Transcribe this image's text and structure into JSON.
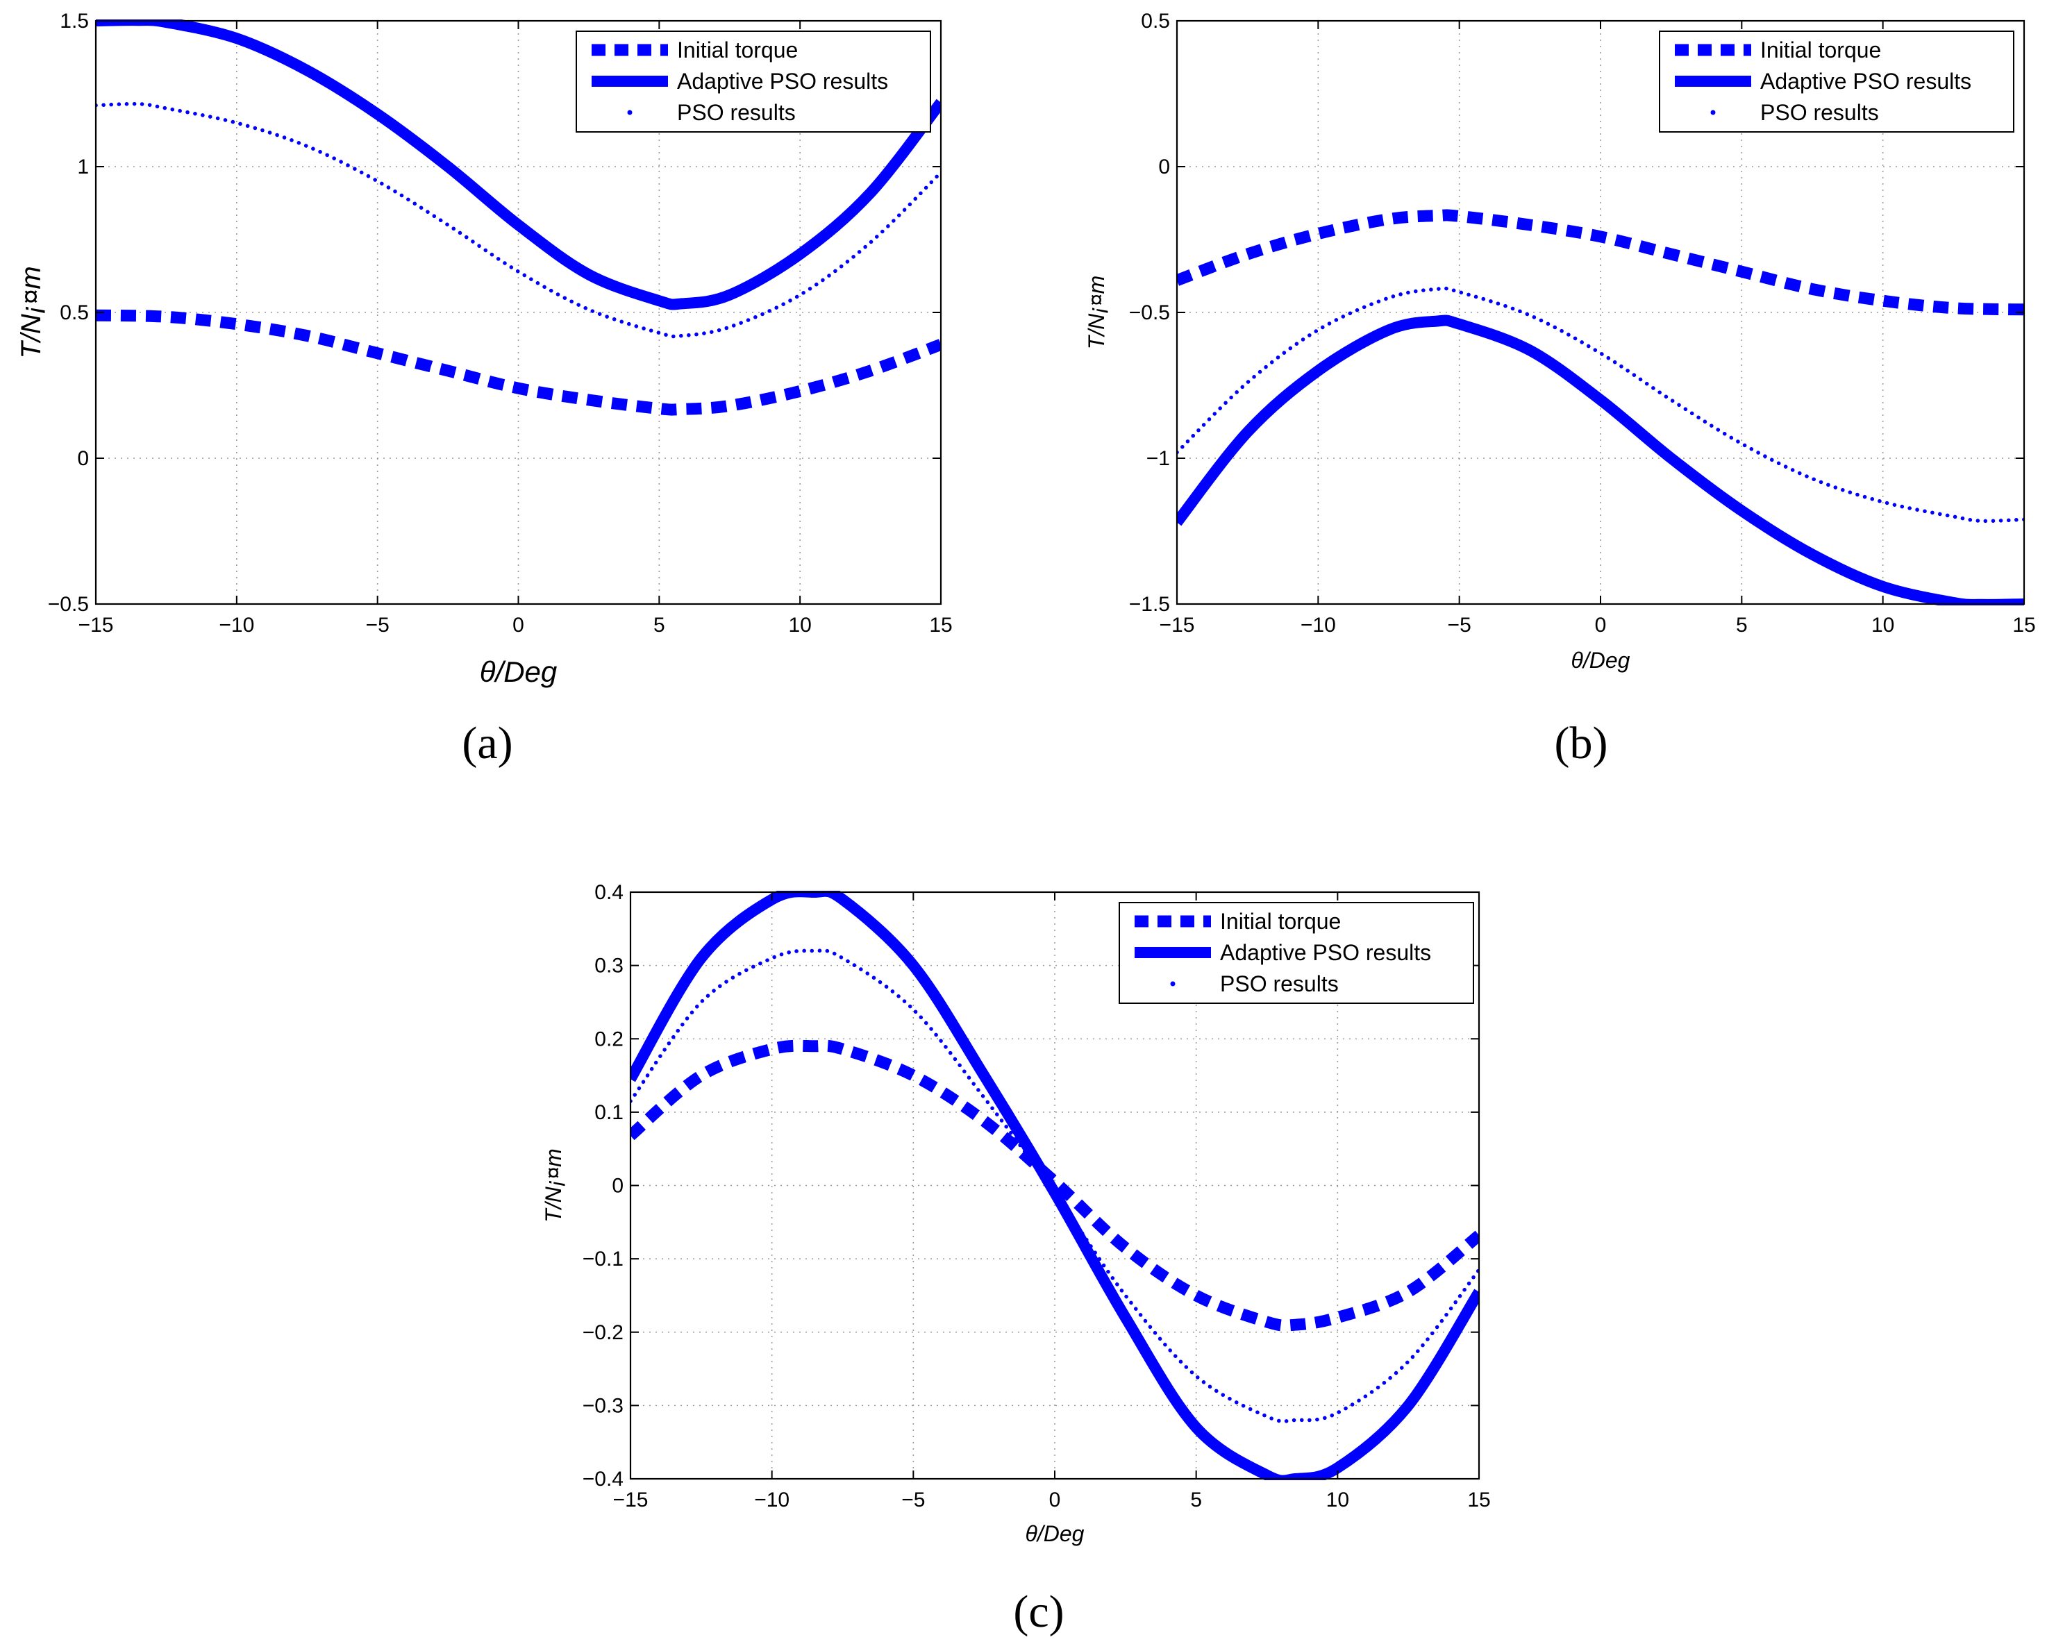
{
  "chart_data": [
    {
      "panel": "(a)",
      "type": "line",
      "xlabel": "θ/Deg",
      "ylabel": "T/N¡¤m",
      "xlim": [
        -15,
        15
      ],
      "ylim": [
        -0.5,
        1.5
      ],
      "xticks": [
        -15,
        -10,
        -5,
        0,
        5,
        10,
        15
      ],
      "xtick_labels": [
        "−15",
        "−10",
        "−5",
        "0",
        "5",
        "10",
        "15"
      ],
      "yticks": [
        -0.5,
        0,
        0.5,
        1,
        1.5
      ],
      "ytick_labels": [
        "−0.5",
        "0",
        "0.5",
        "1",
        "1.5"
      ],
      "grid": true,
      "legend_position": "top-right",
      "series": [
        {
          "name": "Initial torque",
          "style": "thick-dashed",
          "x": [
            -15,
            -12.5,
            -10,
            -7.5,
            -5,
            -2.5,
            0,
            2.5,
            5,
            5.8,
            7.5,
            10,
            12.5,
            15
          ],
          "values": [
            0.49,
            0.485,
            0.46,
            0.42,
            0.36,
            0.3,
            0.24,
            0.2,
            0.17,
            0.168,
            0.18,
            0.23,
            0.3,
            0.39
          ]
        },
        {
          "name": "Adaptive PSO results",
          "style": "thick-solid",
          "x": [
            -15,
            -13.5,
            -12.5,
            -10,
            -7.5,
            -5,
            -2.5,
            0,
            2.5,
            5,
            5.8,
            7.5,
            10,
            12.5,
            15
          ],
          "values": [
            1.5,
            1.502,
            1.495,
            1.44,
            1.33,
            1.18,
            1.0,
            0.8,
            0.63,
            0.54,
            0.53,
            0.56,
            0.7,
            0.91,
            1.22
          ]
        },
        {
          "name": "PSO results",
          "style": "dotted",
          "x": [
            -15,
            -13.5,
            -12.5,
            -10,
            -7.5,
            -5,
            -2.5,
            0,
            2.5,
            5,
            5.8,
            7.5,
            10,
            12.5,
            15
          ],
          "values": [
            1.21,
            1.215,
            1.2,
            1.15,
            1.07,
            0.95,
            0.8,
            0.64,
            0.51,
            0.43,
            0.42,
            0.45,
            0.56,
            0.74,
            0.98
          ]
        }
      ]
    },
    {
      "panel": "(b)",
      "type": "line",
      "xlabel": "θ/Deg",
      "ylabel": "T/N¡¤m",
      "xlim": [
        -15,
        15
      ],
      "ylim": [
        -1.5,
        0.5
      ],
      "xticks": [
        -15,
        -10,
        -5,
        0,
        5,
        10,
        15
      ],
      "xtick_labels": [
        "−15",
        "−10",
        "−5",
        "0",
        "5",
        "10",
        "15"
      ],
      "yticks": [
        -1.5,
        -1,
        -0.5,
        0,
        0.5
      ],
      "ytick_labels": [
        "−1.5",
        "−1",
        "−0.5",
        "0",
        "0.5"
      ],
      "grid": true,
      "legend_position": "top-right",
      "series": [
        {
          "name": "Initial torque",
          "style": "thick-dashed",
          "x": [
            -15,
            -12.5,
            -10,
            -7.5,
            -5.8,
            -5,
            -2.5,
            0,
            2.5,
            5,
            7.5,
            10,
            12.5,
            15
          ],
          "values": [
            -0.39,
            -0.3,
            -0.23,
            -0.18,
            -0.168,
            -0.17,
            -0.2,
            -0.24,
            -0.3,
            -0.36,
            -0.42,
            -0.46,
            -0.485,
            -0.49
          ]
        },
        {
          "name": "Adaptive PSO results",
          "style": "thick-solid",
          "x": [
            -15,
            -12.5,
            -10,
            -7.5,
            -5.8,
            -5,
            -2.5,
            0,
            2.5,
            5,
            7.5,
            10,
            12.5,
            13.5,
            15
          ],
          "values": [
            -1.22,
            -0.91,
            -0.7,
            -0.56,
            -0.53,
            -0.54,
            -0.63,
            -0.8,
            -1.0,
            -1.18,
            -1.33,
            -1.44,
            -1.495,
            -1.502,
            -1.5
          ]
        },
        {
          "name": "PSO results",
          "style": "dotted",
          "x": [
            -15,
            -12.5,
            -10,
            -7.5,
            -5.8,
            -5,
            -2.5,
            0,
            2.5,
            5,
            7.5,
            10,
            12.5,
            13.5,
            15
          ],
          "values": [
            -0.98,
            -0.74,
            -0.56,
            -0.45,
            -0.42,
            -0.43,
            -0.51,
            -0.64,
            -0.8,
            -0.95,
            -1.07,
            -1.15,
            -1.2,
            -1.215,
            -1.21
          ]
        }
      ]
    },
    {
      "panel": "(c)",
      "type": "line",
      "xlabel": "θ/Deg",
      "ylabel": "T/N¡¤m",
      "xlim": [
        -15,
        15
      ],
      "ylim": [
        -0.4,
        0.4
      ],
      "xticks": [
        -15,
        -10,
        -5,
        0,
        5,
        10,
        15
      ],
      "xtick_labels": [
        "−15",
        "−10",
        "−5",
        "0",
        "5",
        "10",
        "15"
      ],
      "yticks": [
        -0.4,
        -0.3,
        -0.2,
        -0.1,
        0,
        0.1,
        0.2,
        0.3,
        0.4
      ],
      "ytick_labels": [
        "−0.4",
        "−0.3",
        "−0.2",
        "−0.1",
        "0",
        "0.1",
        "0.2",
        "0.3",
        "0.4"
      ],
      "grid": true,
      "legend_position": "top-right",
      "series": [
        {
          "name": "Initial torque",
          "style": "thick-dashed",
          "x": [
            -15,
            -12.5,
            -10,
            -8.5,
            -7.5,
            -5,
            -2.5,
            0,
            2.5,
            5,
            7.5,
            8.5,
            10,
            12.5,
            15
          ],
          "values": [
            0.068,
            0.15,
            0.186,
            0.19,
            0.186,
            0.15,
            0.088,
            0.005,
            -0.085,
            -0.15,
            -0.186,
            -0.19,
            -0.18,
            -0.145,
            -0.068
          ]
        },
        {
          "name": "Adaptive PSO results",
          "style": "thick-solid",
          "x": [
            -15,
            -12.5,
            -10,
            -8.5,
            -7.5,
            -5,
            -2.5,
            0,
            2.5,
            5,
            7.5,
            8.5,
            10,
            12.5,
            15
          ],
          "values": [
            0.145,
            0.31,
            0.39,
            0.4,
            0.39,
            0.3,
            0.15,
            -0.01,
            -0.18,
            -0.33,
            -0.395,
            -0.4,
            -0.385,
            -0.3,
            -0.145
          ]
        },
        {
          "name": "PSO results",
          "style": "dotted",
          "x": [
            -15,
            -12.5,
            -10,
            -8.5,
            -7.5,
            -5,
            -2.5,
            0,
            2.5,
            5,
            7.5,
            8.5,
            10,
            12.5,
            15
          ],
          "values": [
            0.115,
            0.25,
            0.31,
            0.32,
            0.31,
            0.24,
            0.12,
            -0.01,
            -0.15,
            -0.26,
            -0.315,
            -0.32,
            -0.31,
            -0.24,
            -0.115
          ]
        }
      ]
    }
  ]
}
